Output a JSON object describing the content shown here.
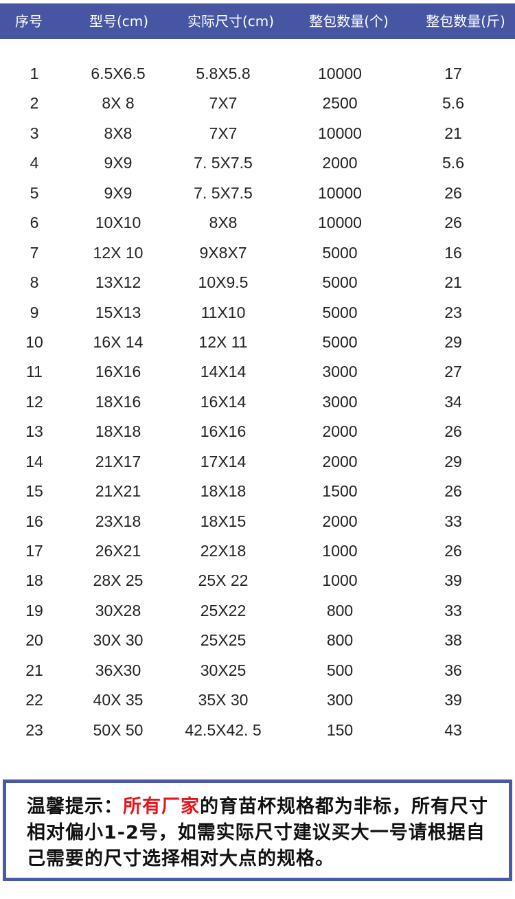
{
  "header": {
    "columns": [
      "序号",
      "型号(cm)",
      "实际尺寸(cm)",
      "整包数量(个)",
      "整包数量(斤)"
    ],
    "background_color": "#4756a3"
  },
  "rows": [
    [
      "1",
      "6.5X6.5",
      "5.8X5.8",
      "10000",
      "17"
    ],
    [
      "2",
      "8X 8",
      "7X7",
      "2500",
      "5.6"
    ],
    [
      "3",
      "8X8",
      "7X7",
      "10000",
      "21"
    ],
    [
      "4",
      "9X9",
      "7. 5X7.5",
      "2000",
      "5.6"
    ],
    [
      "5",
      "9X9",
      "7. 5X7.5",
      "10000",
      "26"
    ],
    [
      "6",
      "10X10",
      "8X8",
      "10000",
      "26"
    ],
    [
      "7",
      "12X 10",
      "9X8X7",
      "5000",
      "16"
    ],
    [
      "8",
      "13X12",
      "10X9.5",
      "5000",
      "21"
    ],
    [
      "9",
      "15X13",
      "11X10",
      "5000",
      "23"
    ],
    [
      "10",
      "16X 14",
      "12X 11",
      "5000",
      "29"
    ],
    [
      "11",
      "16X16",
      "14X14",
      "3000",
      "27"
    ],
    [
      "12",
      "18X16",
      "16X14",
      "3000",
      "34"
    ],
    [
      "13",
      "18X18",
      "16X16",
      "2000",
      "26"
    ],
    [
      "14",
      "21X17",
      "17X14",
      "2000",
      "29"
    ],
    [
      "15",
      "21X21",
      "18X18",
      "1500",
      "26"
    ],
    [
      "16",
      "23X18",
      "18X15",
      "2000",
      "33"
    ],
    [
      "17",
      "26X21",
      "22X18",
      "1000",
      "26"
    ],
    [
      "18",
      "28X 25",
      "25X 22",
      "1000",
      "39"
    ],
    [
      "19",
      "30X28",
      "25X22",
      "800",
      "33"
    ],
    [
      "20",
      "30X 30",
      "25X25",
      "800",
      "38"
    ],
    [
      "21",
      "36X30",
      "30X25",
      "500",
      "36"
    ],
    [
      "22",
      "40X 35",
      "35X 30",
      "300",
      "39"
    ],
    [
      "23",
      "50X 50",
      "42.5X42. 5",
      "150",
      "43"
    ]
  ],
  "notice": {
    "prefix": "温馨提示：",
    "highlight": "所有厂家",
    "body": "的育苗杯规格都为非标，所有尺寸相对偏小1-2号，如需实际尺寸建议买大一号请根据自己需要的尺寸选择相对大点的规格。",
    "highlight_color": "#e8141b",
    "border_color": "#4a58a8"
  }
}
